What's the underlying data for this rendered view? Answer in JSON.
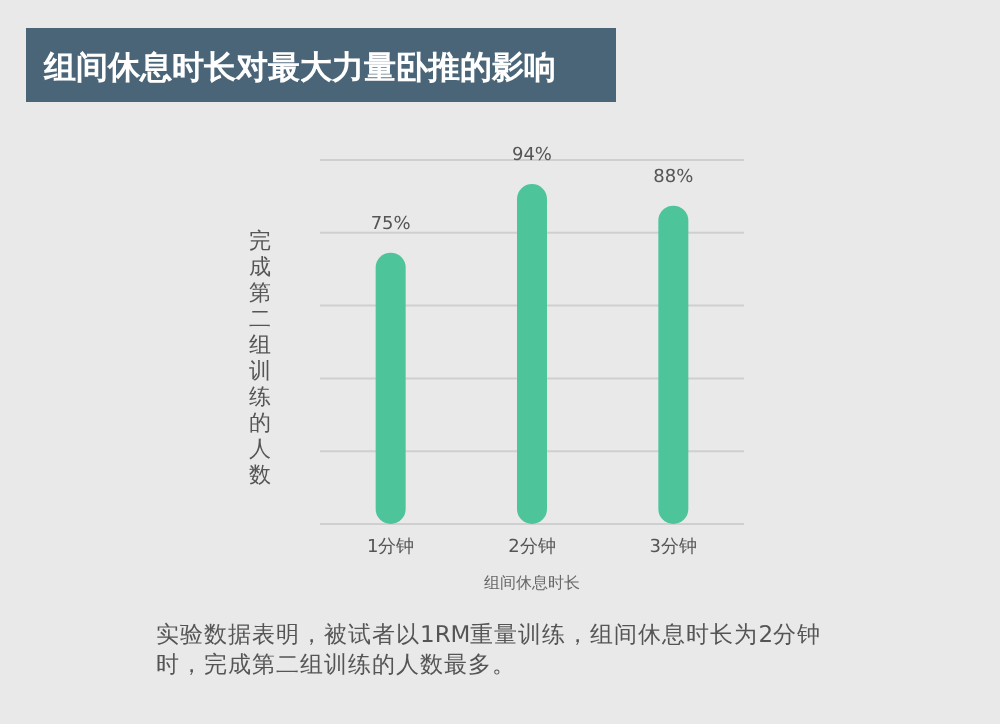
{
  "chart_data": {
    "type": "bar",
    "title": "组间休息时长对最大力量卧推的影响",
    "categories": [
      "1分钟",
      "2分钟",
      "3分钟"
    ],
    "values": [
      75,
      94,
      88
    ],
    "color": "#4ec49b",
    "value_labels": [
      "75%",
      "94%",
      "88%"
    ],
    "xlabel": "组间休息时长",
    "ylabel": "完成第二组训练的人数",
    "grid": "y",
    "annotations": [
      "实验数据表明，被试者以1RM重量训练，组间休息时长为2分钟时，完成第二组训练的人数最多。"
    ]
  }
}
